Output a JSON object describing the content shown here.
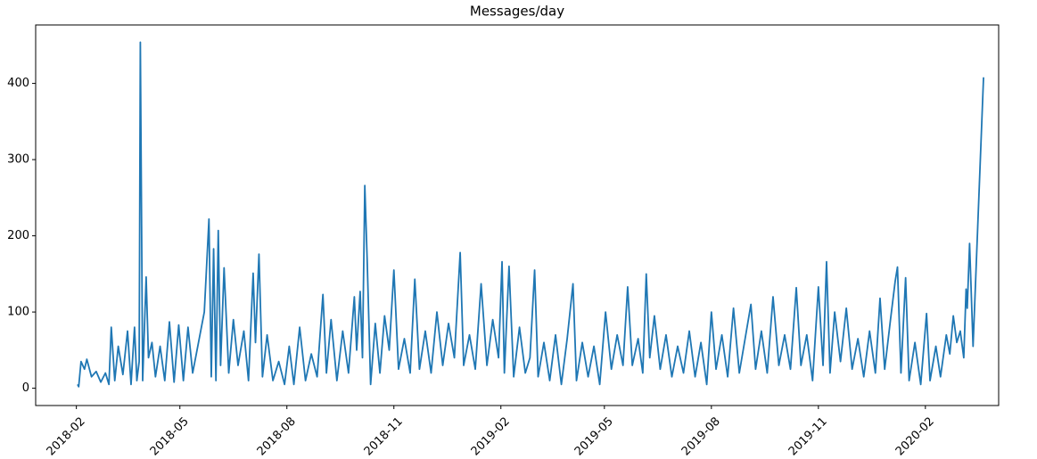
{
  "chart_data": {
    "type": "line",
    "title": "Messages/day",
    "color": "#1f77b4",
    "x": [
      "2018-02-02",
      "2018-02-03",
      "2018-02-05",
      "2018-02-08",
      "2018-02-10",
      "2018-02-14",
      "2018-02-18",
      "2018-02-22",
      "2018-02-26",
      "2018-03-01",
      "2018-03-03",
      "2018-03-06",
      "2018-03-09",
      "2018-03-13",
      "2018-03-17",
      "2018-03-20",
      "2018-03-23",
      "2018-03-25",
      "2018-03-27",
      "2018-03-28",
      "2018-03-30",
      "2018-04-02",
      "2018-04-04",
      "2018-04-07",
      "2018-04-10",
      "2018-04-14",
      "2018-04-18",
      "2018-04-22",
      "2018-04-26",
      "2018-04-30",
      "2018-05-04",
      "2018-05-08",
      "2018-05-12",
      "2018-05-17",
      "2018-05-22",
      "2018-05-26",
      "2018-05-28",
      "2018-05-30",
      "2018-06-01",
      "2018-06-03",
      "2018-06-05",
      "2018-06-08",
      "2018-06-12",
      "2018-06-16",
      "2018-06-20",
      "2018-06-25",
      "2018-06-29",
      "2018-07-03",
      "2018-07-05",
      "2018-07-08",
      "2018-07-11",
      "2018-07-15",
      "2018-07-20",
      "2018-07-25",
      "2018-07-30",
      "2018-08-03",
      "2018-08-07",
      "2018-08-12",
      "2018-08-17",
      "2018-08-22",
      "2018-08-27",
      "2018-09-01",
      "2018-09-04",
      "2018-09-08",
      "2018-09-13",
      "2018-09-18",
      "2018-09-23",
      "2018-09-28",
      "2018-09-30",
      "2018-10-03",
      "2018-10-05",
      "2018-10-07",
      "2018-10-09",
      "2018-10-12",
      "2018-10-16",
      "2018-10-20",
      "2018-10-24",
      "2018-10-28",
      "2018-11-01",
      "2018-11-05",
      "2018-11-10",
      "2018-11-15",
      "2018-11-19",
      "2018-11-23",
      "2018-11-28",
      "2018-12-03",
      "2018-12-08",
      "2018-12-13",
      "2018-12-18",
      "2018-12-23",
      "2018-12-28",
      "2018-12-31",
      "2019-01-05",
      "2019-01-10",
      "2019-01-15",
      "2019-01-20",
      "2019-01-25",
      "2019-01-30",
      "2019-02-02",
      "2019-02-04",
      "2019-02-08",
      "2019-02-12",
      "2019-02-17",
      "2019-02-22",
      "2019-02-26",
      "2019-03-02",
      "2019-03-05",
      "2019-03-10",
      "2019-03-15",
      "2019-03-20",
      "2019-03-25",
      "2019-03-30",
      "2019-04-04",
      "2019-04-07",
      "2019-04-12",
      "2019-04-17",
      "2019-04-22",
      "2019-04-27",
      "2019-05-02",
      "2019-05-07",
      "2019-05-12",
      "2019-05-17",
      "2019-05-21",
      "2019-05-25",
      "2019-05-30",
      "2019-06-03",
      "2019-06-06",
      "2019-06-09",
      "2019-06-13",
      "2019-06-18",
      "2019-06-23",
      "2019-06-28",
      "2019-07-03",
      "2019-07-08",
      "2019-07-13",
      "2019-07-18",
      "2019-07-23",
      "2019-07-28",
      "2019-08-01",
      "2019-08-05",
      "2019-08-10",
      "2019-08-15",
      "2019-08-20",
      "2019-08-25",
      "2019-08-30",
      "2019-09-04",
      "2019-09-08",
      "2019-09-13",
      "2019-09-18",
      "2019-09-23",
      "2019-09-28",
      "2019-10-03",
      "2019-10-08",
      "2019-10-13",
      "2019-10-17",
      "2019-10-22",
      "2019-10-27",
      "2019-11-01",
      "2019-11-05",
      "2019-11-08",
      "2019-11-11",
      "2019-11-15",
      "2019-11-20",
      "2019-11-25",
      "2019-11-30",
      "2019-12-05",
      "2019-12-10",
      "2019-12-15",
      "2019-12-20",
      "2019-12-24",
      "2019-12-28",
      "2020-01-02",
      "2020-01-06",
      "2020-01-08",
      "2020-01-11",
      "2020-01-15",
      "2020-01-18",
      "2020-01-23",
      "2020-01-28",
      "2020-02-02",
      "2020-02-05",
      "2020-02-10",
      "2020-02-14",
      "2020-02-19",
      "2020-02-22",
      "2020-02-25",
      "2020-02-28",
      "2020-03-02",
      "2020-03-05",
      "2020-03-07",
      "2020-03-08",
      "2020-03-10",
      "2020-03-13",
      "2020-03-22"
    ],
    "values": [
      5,
      2,
      35,
      25,
      38,
      15,
      22,
      8,
      20,
      5,
      80,
      10,
      55,
      18,
      75,
      5,
      80,
      10,
      35,
      454,
      10,
      146,
      40,
      60,
      15,
      55,
      10,
      87,
      8,
      83,
      10,
      80,
      20,
      60,
      100,
      222,
      15,
      183,
      10,
      207,
      30,
      158,
      20,
      90,
      30,
      75,
      10,
      151,
      60,
      176,
      15,
      70,
      10,
      35,
      5,
      55,
      5,
      80,
      10,
      45,
      15,
      123,
      20,
      90,
      10,
      75,
      20,
      120,
      50,
      127,
      40,
      266,
      170,
      5,
      85,
      20,
      95,
      50,
      155,
      25,
      65,
      20,
      143,
      25,
      75,
      20,
      100,
      30,
      85,
      40,
      178,
      30,
      70,
      25,
      137,
      30,
      90,
      40,
      166,
      20,
      160,
      15,
      80,
      20,
      40,
      155,
      15,
      60,
      10,
      70,
      5,
      65,
      137,
      10,
      60,
      15,
      55,
      5,
      100,
      25,
      70,
      30,
      133,
      30,
      65,
      20,
      150,
      40,
      95,
      25,
      70,
      15,
      55,
      20,
      75,
      15,
      60,
      5,
      100,
      25,
      70,
      15,
      105,
      20,
      65,
      110,
      25,
      75,
      20,
      120,
      30,
      70,
      25,
      132,
      30,
      70,
      10,
      133,
      30,
      166,
      20,
      100,
      35,
      105,
      25,
      65,
      15,
      75,
      20,
      118,
      25,
      90,
      140,
      159,
      20,
      145,
      10,
      60,
      5,
      98,
      10,
      55,
      15,
      70,
      45,
      95,
      60,
      75,
      40,
      130,
      105,
      190,
      55,
      408
    ],
    "xlim": [
      "2017-12-28",
      "2020-04-04"
    ],
    "xticks": [
      {
        "value": "2018-02-01",
        "label": "2018-02"
      },
      {
        "value": "2018-05-01",
        "label": "2018-05"
      },
      {
        "value": "2018-08-01",
        "label": "2018-08"
      },
      {
        "value": "2018-11-01",
        "label": "2018-11"
      },
      {
        "value": "2019-02-01",
        "label": "2019-02"
      },
      {
        "value": "2019-05-01",
        "label": "2019-05"
      },
      {
        "value": "2019-08-01",
        "label": "2019-08"
      },
      {
        "value": "2019-11-01",
        "label": "2019-11"
      },
      {
        "value": "2020-02-01",
        "label": "2020-02"
      }
    ],
    "ylim": [
      -22.7,
      476.7
    ],
    "yticks": [
      0,
      100,
      200,
      300,
      400
    ]
  }
}
